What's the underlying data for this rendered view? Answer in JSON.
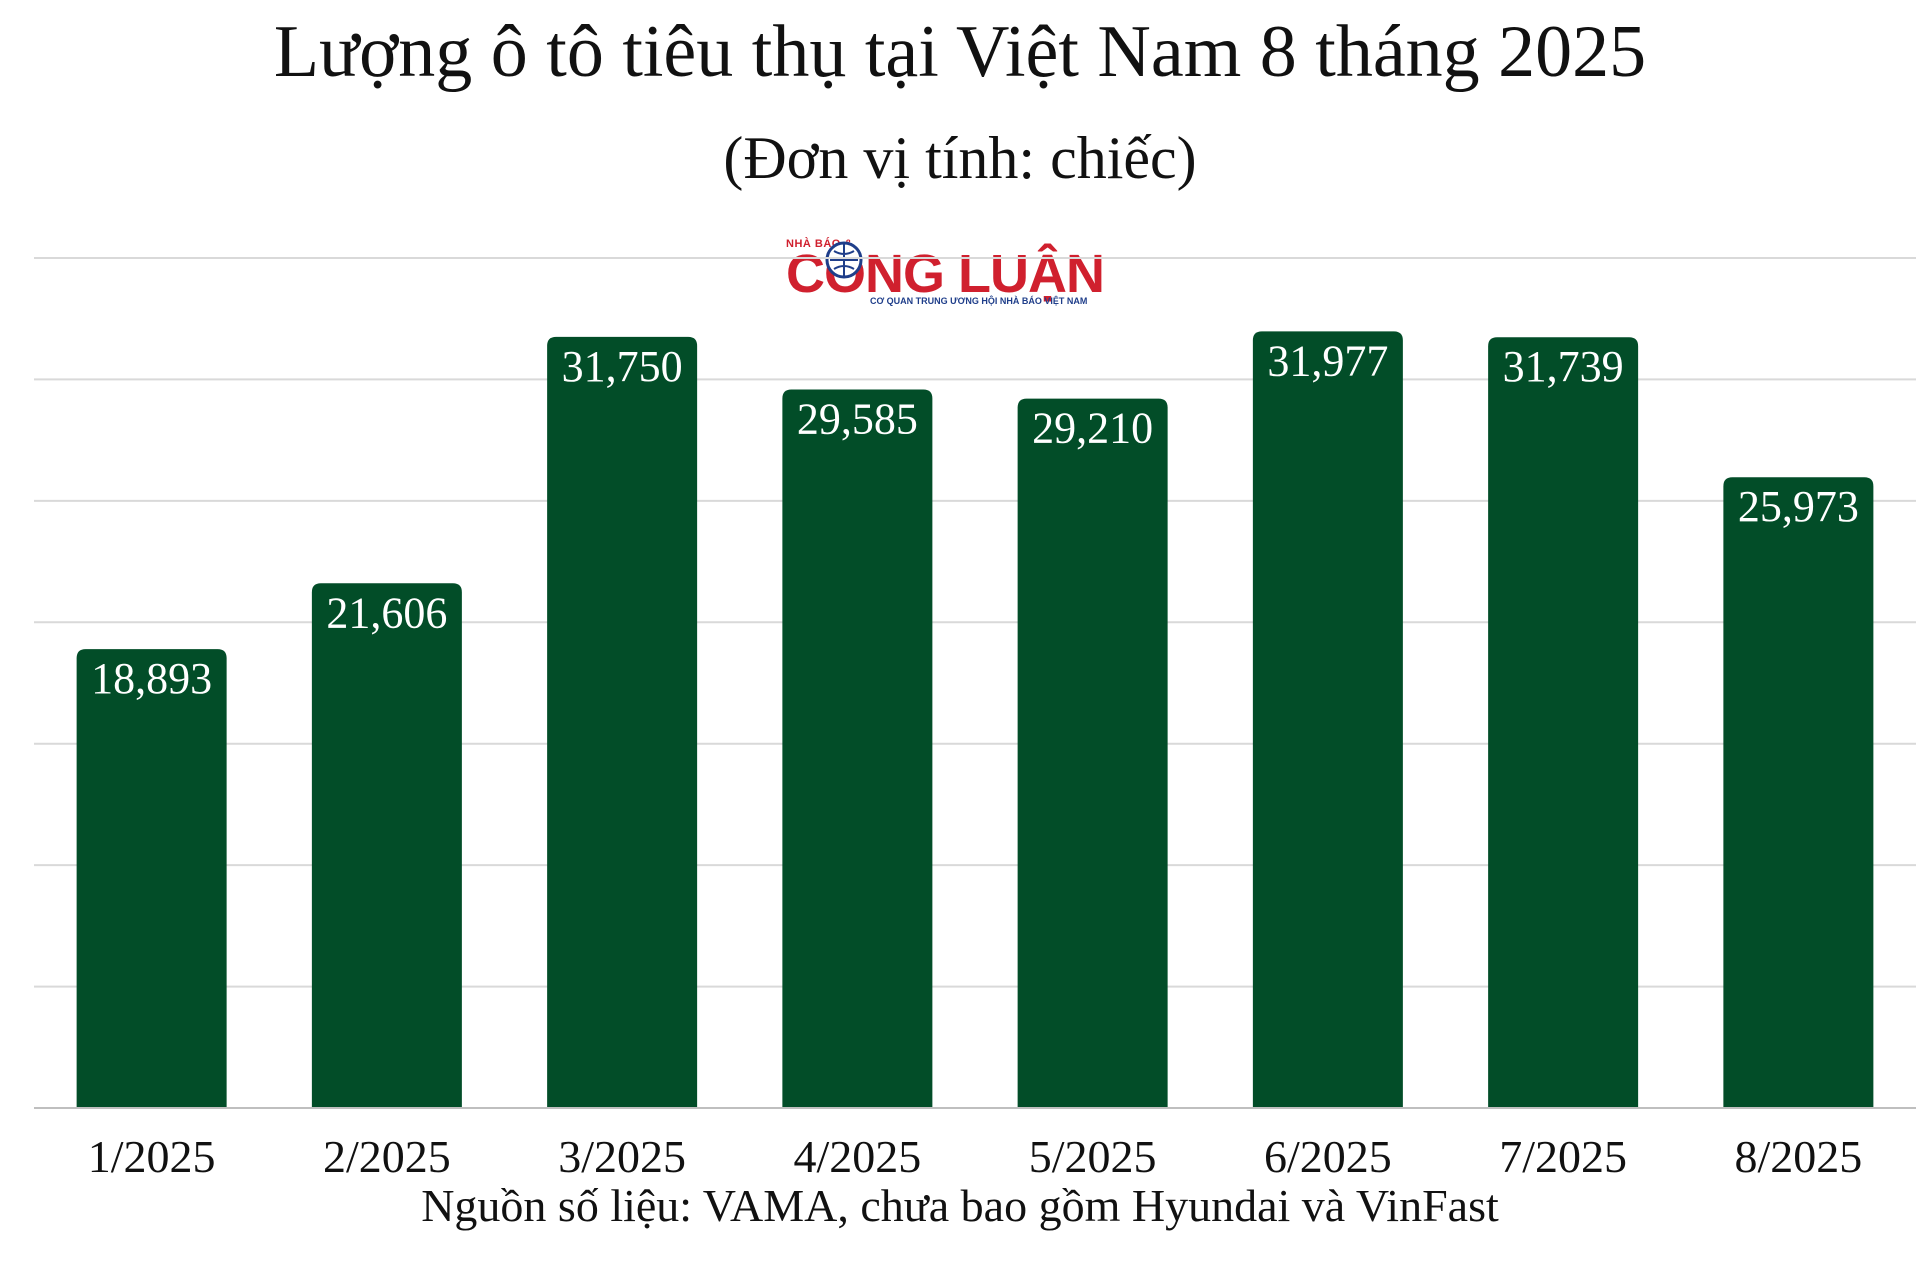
{
  "chart_data": {
    "type": "bar",
    "title": "Lượng ô tô tiêu thụ tại Việt Nam 8 tháng 2025",
    "subtitle": "(Đơn vị tính: chiếc)",
    "categories": [
      "1/2025",
      "2/2025",
      "3/2025",
      "4/2025",
      "5/2025",
      "6/2025",
      "7/2025",
      "8/2025"
    ],
    "values": [
      18893,
      21606,
      31750,
      29585,
      29210,
      31977,
      31739,
      25973
    ],
    "data_labels": [
      "18,893",
      "21,606",
      "31,750",
      "29,585",
      "29,210",
      "31,977",
      "31,739",
      "25,973"
    ],
    "ylim": [
      0,
      35000
    ],
    "grid": true,
    "legend": "none",
    "bar_color": "#024d28",
    "label_color": "#ffffff",
    "grid_color": "#d9d9d9",
    "source": "Nguồn số liệu: VAMA, chưa bao gồm Hyundai và VinFast"
  },
  "logo": {
    "top_text": "NHÀ BÁO &",
    "main_text": "CÔNG LUẬN",
    "tagline": "CƠ QUAN TRUNG ƯƠNG HỘI NHÀ BÁO VIỆT NAM",
    "color": "#d0202e",
    "emblem_color": "#1f3e8a"
  }
}
